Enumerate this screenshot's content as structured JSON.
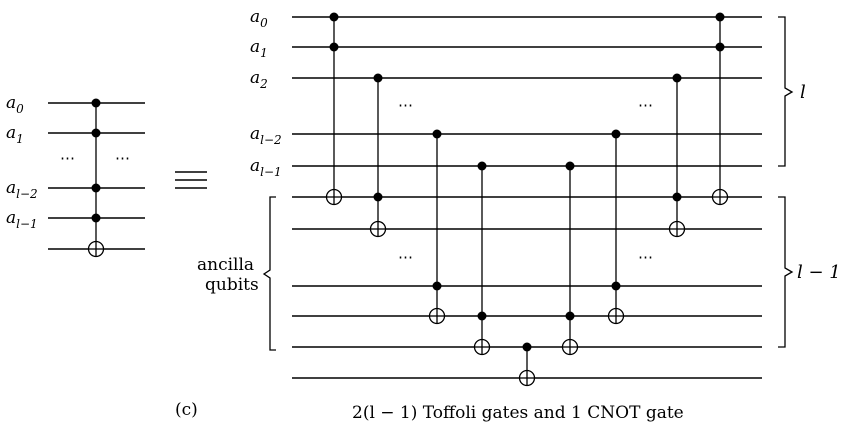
{
  "left_circuit": {
    "labels": [
      {
        "base": "a",
        "sub": "0"
      },
      {
        "base": "a",
        "sub": "1"
      },
      {
        "base": "a",
        "sub": "l−2"
      },
      {
        "base": "a",
        "sub": "l−1"
      }
    ],
    "dots": "⋯"
  },
  "right_circuit": {
    "labels": [
      {
        "base": "a",
        "sub": "0"
      },
      {
        "base": "a",
        "sub": "1"
      },
      {
        "base": "a",
        "sub": "2"
      },
      {
        "base": "a",
        "sub": "l−2"
      },
      {
        "base": "a",
        "sub": "l−1"
      }
    ],
    "dots": "⋯",
    "ancilla_label_line1": "ancilla",
    "ancilla_label_line2": "qubits",
    "brace_top_label": "l",
    "brace_bottom_label": "l − 1"
  },
  "caption": {
    "panel": "(c)",
    "text": "2(l − 1) Toffoli gates and 1 CNOT gate"
  }
}
